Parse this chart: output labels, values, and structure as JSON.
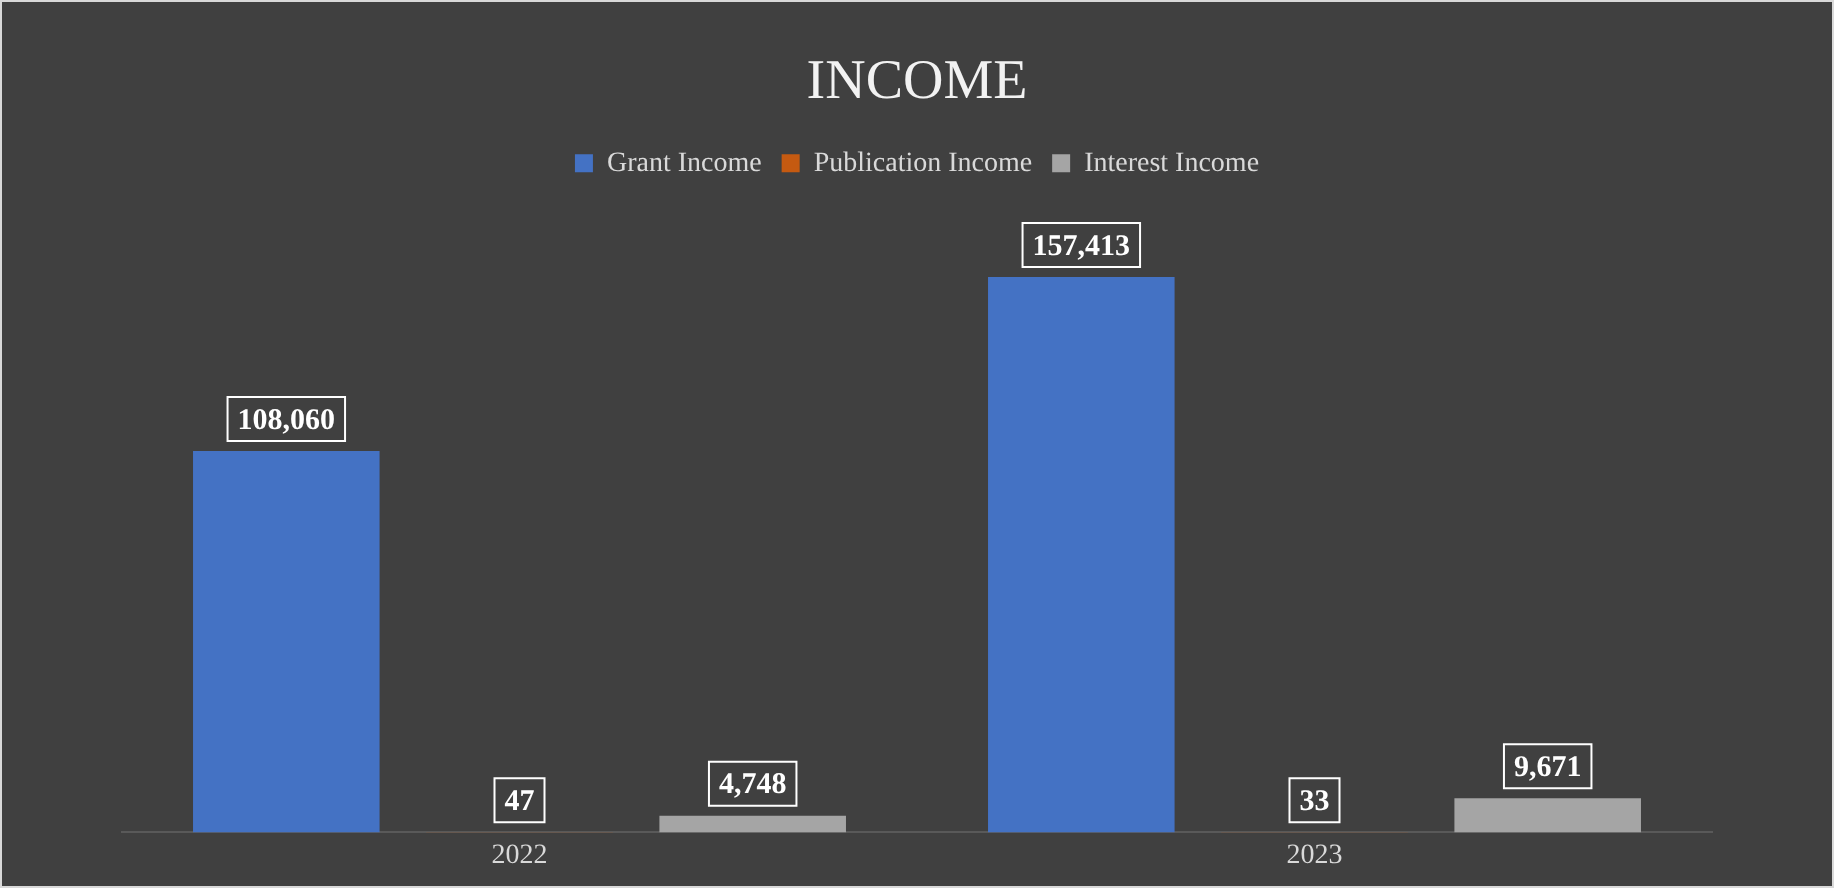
{
  "chart_data": {
    "type": "bar",
    "title": "INCOME",
    "categories": [
      "2022",
      "2023"
    ],
    "series": [
      {
        "name": "Grant Income",
        "color": "#4472c4",
        "values": [
          108060,
          157413
        ],
        "value_labels": [
          "108,060",
          "157,413"
        ]
      },
      {
        "name": "Publication Income",
        "color": "#c55a11",
        "values": [
          47,
          33
        ],
        "value_labels": [
          "47",
          "33"
        ]
      },
      {
        "name": "Interest Income",
        "color": "#a5a5a5",
        "values": [
          4748,
          9671
        ],
        "value_labels": [
          "4,748",
          "9,671"
        ]
      }
    ],
    "legend": "top",
    "grid": false,
    "tick_labels": "x"
  }
}
